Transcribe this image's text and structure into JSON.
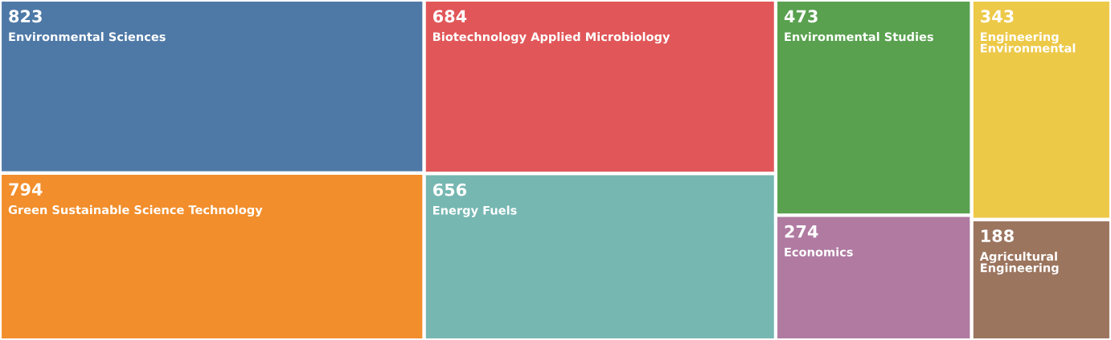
{
  "chart_data": {
    "type": "other",
    "categories": [
      "Environmental Sciences",
      "Green Sustainable Science Technology",
      "Biotechnology Applied Microbiology",
      "Energy Fuels",
      "Environmental Studies",
      "Economics",
      "Engineering Environmental",
      "Agricultural Engineering"
    ],
    "values": [
      823,
      794,
      684,
      656,
      473,
      274,
      343,
      188
    ],
    "colors": [
      "#4e79a7",
      "#f28e2b",
      "#e15759",
      "#76b7b2",
      "#59a14f",
      "#b07aa1",
      "#edc948",
      "#9c755f"
    ],
    "data_labels": true
  }
}
